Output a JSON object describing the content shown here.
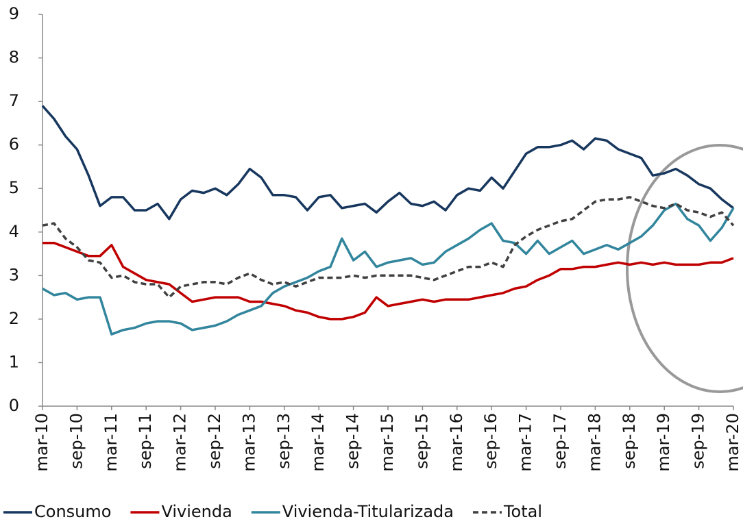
{
  "chart_data": {
    "type": "line",
    "categories": [
      "mar-10",
      null,
      null,
      "sep-10",
      null,
      null,
      "mar-11",
      null,
      null,
      "sep-11",
      null,
      null,
      "mar-12",
      null,
      null,
      "sep-12",
      null,
      null,
      "mar-13",
      null,
      null,
      "sep-13",
      null,
      null,
      "mar-14",
      null,
      null,
      "sep-14",
      null,
      null,
      "mar-15",
      null,
      null,
      "sep-15",
      null,
      null,
      "mar-16",
      null,
      null,
      "sep-16",
      null,
      null,
      "mar-17",
      null,
      null,
      "sep-17",
      null,
      null,
      "mar-18",
      null,
      null,
      "sep-18",
      null,
      null,
      "mar-19",
      null,
      null,
      "sep-19",
      null,
      null,
      "mar-20"
    ],
    "series": [
      {
        "name": "Consumo",
        "color": "#17375e",
        "dash": false,
        "values": [
          6.9,
          6.6,
          6.2,
          5.9,
          5.3,
          4.6,
          4.8,
          4.8,
          4.5,
          4.5,
          4.65,
          4.3,
          4.75,
          4.95,
          4.9,
          5.0,
          4.85,
          5.1,
          5.45,
          5.25,
          4.85,
          4.85,
          4.8,
          4.5,
          4.8,
          4.85,
          4.55,
          4.6,
          4.65,
          4.45,
          4.7,
          4.9,
          4.65,
          4.6,
          4.7,
          4.5,
          4.85,
          5.0,
          4.95,
          5.25,
          5.0,
          5.4,
          5.8,
          5.95,
          5.95,
          6.0,
          6.1,
          5.9,
          6.15,
          6.1,
          5.9,
          5.8,
          5.7,
          5.3,
          5.35,
          5.45,
          5.3,
          5.1,
          5.0,
          4.75,
          4.55
        ]
      },
      {
        "name": "Vivienda",
        "color": "#c00000",
        "dash": false,
        "values": [
          3.75,
          3.75,
          3.65,
          3.55,
          3.45,
          3.45,
          3.7,
          3.2,
          3.05,
          2.9,
          2.85,
          2.8,
          2.6,
          2.4,
          2.45,
          2.5,
          2.5,
          2.5,
          2.4,
          2.4,
          2.35,
          2.3,
          2.2,
          2.15,
          2.05,
          2.0,
          2.0,
          2.05,
          2.15,
          2.5,
          2.3,
          2.35,
          2.4,
          2.45,
          2.4,
          2.45,
          2.45,
          2.45,
          2.5,
          2.55,
          2.6,
          2.7,
          2.75,
          2.9,
          3.0,
          3.15,
          3.15,
          3.2,
          3.2,
          3.25,
          3.3,
          3.25,
          3.3,
          3.25,
          3.3,
          3.25,
          3.25,
          3.25,
          3.3,
          3.3,
          3.4
        ]
      },
      {
        "name": "Vivienda-Titularizada",
        "color": "#31859c",
        "dash": false,
        "values": [
          2.7,
          2.55,
          2.6,
          2.45,
          2.5,
          2.5,
          1.65,
          1.75,
          1.8,
          1.9,
          1.95,
          1.95,
          1.9,
          1.75,
          1.8,
          1.85,
          1.95,
          2.1,
          2.2,
          2.3,
          2.6,
          2.75,
          2.85,
          2.95,
          3.1,
          3.2,
          3.85,
          3.35,
          3.55,
          3.2,
          3.3,
          3.35,
          3.4,
          3.25,
          3.3,
          3.55,
          3.7,
          3.85,
          4.05,
          4.2,
          3.8,
          3.75,
          3.5,
          3.8,
          3.5,
          3.65,
          3.8,
          3.5,
          3.6,
          3.7,
          3.6,
          3.75,
          3.9,
          4.15,
          4.5,
          4.65,
          4.3,
          4.15,
          3.8,
          4.1,
          4.55
        ]
      },
      {
        "name": "Total",
        "color": "#404040",
        "dash": true,
        "values": [
          4.15,
          4.2,
          3.85,
          3.65,
          3.35,
          3.3,
          2.95,
          3.0,
          2.85,
          2.8,
          2.8,
          2.5,
          2.75,
          2.8,
          2.85,
          2.85,
          2.8,
          2.95,
          3.05,
          2.9,
          2.8,
          2.85,
          2.75,
          2.85,
          2.95,
          2.95,
          2.95,
          3.0,
          2.95,
          3.0,
          3.0,
          3.0,
          3.0,
          2.95,
          2.9,
          3.0,
          3.1,
          3.2,
          3.2,
          3.3,
          3.2,
          3.7,
          3.9,
          4.05,
          4.15,
          4.25,
          4.3,
          4.5,
          4.7,
          4.75,
          4.75,
          4.8,
          4.7,
          4.6,
          4.55,
          4.65,
          4.5,
          4.45,
          4.35,
          4.45,
          4.15
        ]
      }
    ],
    "ylim": [
      0,
      9
    ],
    "yticks": [
      0,
      1,
      2,
      3,
      4,
      5,
      6,
      7,
      8,
      9
    ],
    "grid": false,
    "legend": "bottom"
  }
}
